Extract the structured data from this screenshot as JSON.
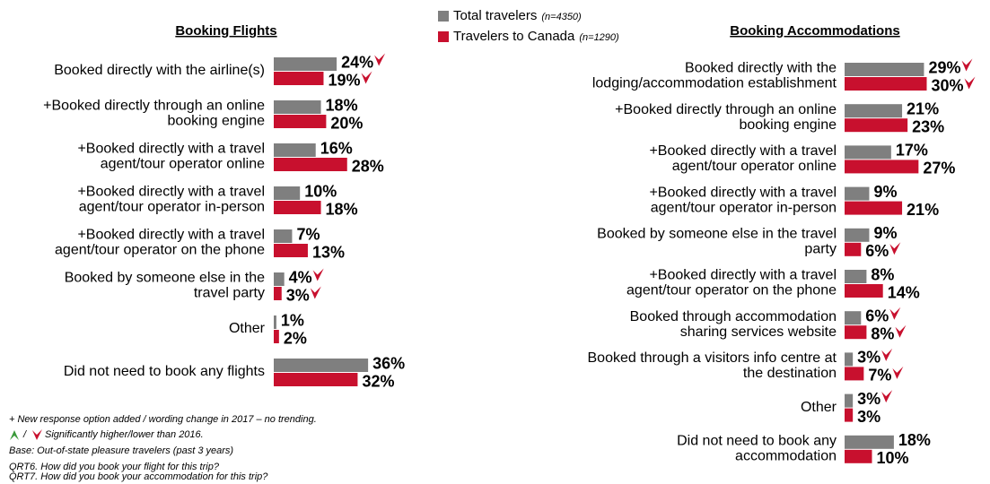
{
  "chart_data": [
    {
      "type": "bar",
      "orientation": "horizontal",
      "title": "Booking Flights",
      "categories": [
        [
          "Booked directly with the airline(s)"
        ],
        [
          "+Booked directly through an online",
          "booking engine"
        ],
        [
          "+Booked directly with a travel",
          "agent/tour operator online"
        ],
        [
          "+Booked directly with a travel",
          "agent/tour operator in-person"
        ],
        [
          "+Booked directly with a travel",
          "agent/tour operator on the phone"
        ],
        [
          "Booked by someone else in the",
          "travel party"
        ],
        [
          "Other"
        ],
        [
          "Did not need to book any flights"
        ]
      ],
      "xlim": [
        0,
        100
      ],
      "series": [
        {
          "name": "Total travelers",
          "n_label": "(n=4350)",
          "color": "#7f7f7f",
          "values": [
            24,
            18,
            16,
            10,
            7,
            4,
            1,
            36
          ],
          "value_labels": [
            "24%",
            "18%",
            "16%",
            "10%",
            "7%",
            "4%",
            "1%",
            "36%"
          ],
          "sig_lower": [
            true,
            false,
            false,
            false,
            false,
            true,
            false,
            false
          ]
        },
        {
          "name": "Travelers to Canada",
          "n_label": "(n=1290)",
          "color": "#c8102e",
          "values": [
            19,
            20,
            28,
            18,
            13,
            3,
            2,
            32
          ],
          "value_labels": [
            "19%",
            "20%",
            "28%",
            "18%",
            "13%",
            "3%",
            "2%",
            "32%"
          ],
          "sig_lower": [
            true,
            false,
            false,
            false,
            false,
            true,
            false,
            false
          ]
        }
      ]
    },
    {
      "type": "bar",
      "orientation": "horizontal",
      "title": "Booking Accommodations",
      "categories": [
        [
          "Booked directly with the",
          "lodging/accommodation establishment"
        ],
        [
          "+Booked directly through an online",
          "booking engine"
        ],
        [
          "+Booked directly with a travel",
          "agent/tour operator online"
        ],
        [
          "+Booked directly with a travel",
          "agent/tour operator in-person"
        ],
        [
          "Booked by someone else in the travel",
          "party"
        ],
        [
          "+Booked directly with a travel",
          "agent/tour operator on the phone"
        ],
        [
          "Booked through accommodation",
          "sharing services website"
        ],
        [
          "Booked through a visitors info centre at",
          "the destination"
        ],
        [
          "Other"
        ],
        [
          "Did not need to book any",
          "accommodation"
        ]
      ],
      "xlim": [
        0,
        100
      ],
      "series": [
        {
          "color": "#7f7f7f",
          "values": [
            29,
            21,
            17,
            9,
            9,
            8,
            6,
            3,
            3,
            18
          ],
          "value_labels": [
            "29%",
            "21%",
            "17%",
            "9%",
            "9%",
            "8%",
            "6%",
            "3%",
            "3%",
            "18%"
          ],
          "sig_lower": [
            true,
            false,
            false,
            false,
            false,
            false,
            true,
            true,
            true,
            false
          ]
        },
        {
          "color": "#c8102e",
          "values": [
            30,
            23,
            27,
            21,
            6,
            14,
            8,
            7,
            3,
            10
          ],
          "value_labels": [
            "30%",
            "23%",
            "27%",
            "21%",
            "6%",
            "14%",
            "8%",
            "7%",
            "3%",
            "10%"
          ],
          "sig_lower": [
            true,
            false,
            false,
            false,
            true,
            false,
            true,
            true,
            false,
            false
          ]
        }
      ]
    }
  ],
  "footnotes": {
    "new_option": "+ New response option added / wording change in 2017 – no trending.",
    "sig_separator": "/",
    "sig_text": "Significantly higher/lower than 2016.",
    "base": "Base: Out-of-state pleasure travelers (past 3 years)",
    "questions": [
      "QRT6. How did you book your flight for this trip?",
      "QRT7. How did you book your accommodation for this trip?"
    ]
  }
}
